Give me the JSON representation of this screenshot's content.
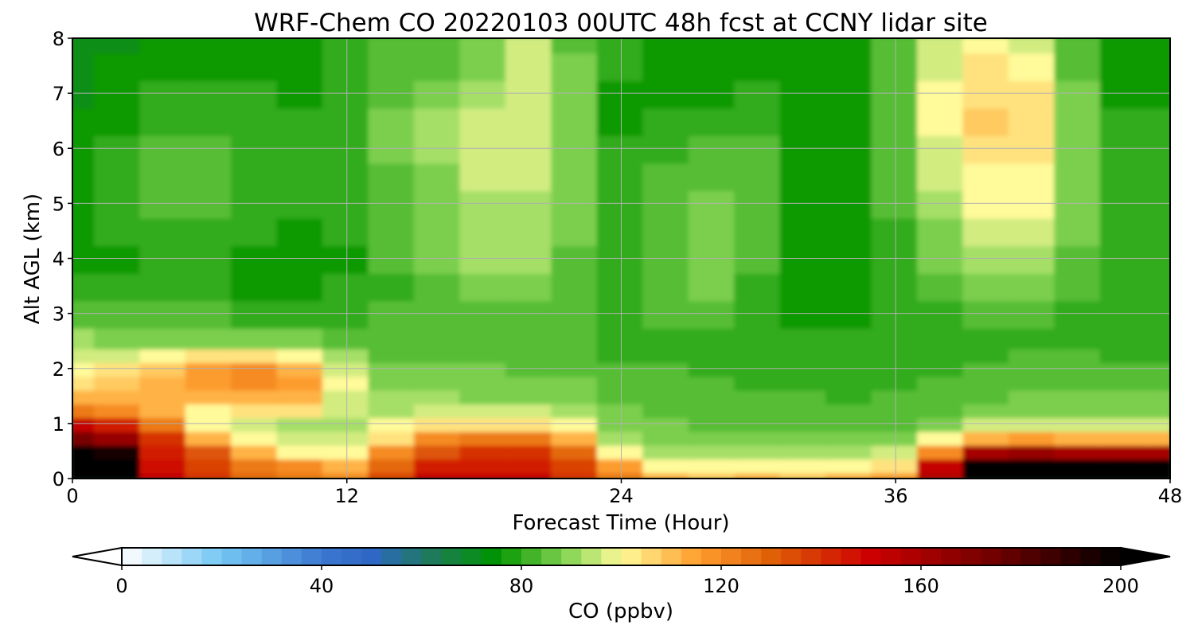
{
  "chart_data": {
    "type": "heatmap",
    "title": "WRF-Chem CO  20220103 00UTC 48h fcst at CCNY lidar site",
    "xlabel": "Forecast Time (Hour)",
    "ylabel": "Alt AGL (km)",
    "xlim": [
      0,
      48
    ],
    "ylim": [
      0,
      8
    ],
    "xticks": [
      "0",
      "12",
      "24",
      "36",
      "48"
    ],
    "yticks": [
      "0",
      "1",
      "2",
      "3",
      "4",
      "5",
      "6",
      "7",
      "8"
    ],
    "grid": true,
    "x": [
      0,
      2,
      4,
      6,
      8,
      10,
      12,
      14,
      16,
      18,
      20,
      22,
      24,
      26,
      28,
      30,
      32,
      34,
      36,
      38,
      40,
      42,
      44,
      46,
      48
    ],
    "y": [
      0,
      0.25,
      0.5,
      0.75,
      1,
      1.25,
      1.5,
      1.75,
      2,
      2.25,
      2.5,
      3,
      3.5,
      4,
      4.5,
      5,
      5.5,
      6,
      6.5,
      7,
      7.5,
      8
    ],
    "z": [
      [
        205,
        205,
        150,
        140,
        128,
        122,
        118,
        135,
        150,
        150,
        150,
        140,
        125,
        110,
        108,
        110,
        108,
        112,
        115,
        155,
        205,
        205,
        205,
        205,
        205
      ],
      [
        205,
        205,
        148,
        135,
        125,
        118,
        112,
        128,
        142,
        145,
        145,
        135,
        115,
        100,
        100,
        100,
        100,
        100,
        105,
        150,
        205,
        205,
        205,
        205,
        205
      ],
      [
        200,
        195,
        142,
        130,
        112,
        100,
        100,
        118,
        132,
        138,
        138,
        126,
        100,
        92,
        92,
        90,
        90,
        90,
        95,
        120,
        160,
        165,
        160,
        158,
        158
      ],
      [
        170,
        165,
        140,
        112,
        100,
        95,
        95,
        105,
        120,
        125,
        125,
        110,
        92,
        88,
        87,
        86,
        86,
        86,
        88,
        100,
        110,
        115,
        112,
        110,
        110
      ],
      [
        150,
        145,
        122,
        100,
        97,
        93,
        92,
        98,
        102,
        102,
        102,
        98,
        88,
        86,
        85,
        84,
        84,
        84,
        85,
        88,
        94,
        95,
        95,
        95,
        95
      ],
      [
        125,
        120,
        110,
        100,
        103,
        102,
        94,
        92,
        94,
        94,
        94,
        92,
        86,
        85,
        84,
        83,
        83,
        82,
        83,
        85,
        88,
        89,
        89,
        89,
        89
      ],
      [
        110,
        112,
        110,
        110,
        112,
        110,
        96,
        90,
        90,
        89,
        88,
        88,
        84,
        84,
        83,
        82,
        82,
        81,
        82,
        83,
        85,
        86,
        86,
        86,
        86
      ],
      [
        105,
        108,
        112,
        116,
        118,
        115,
        100,
        88,
        88,
        87,
        86,
        86,
        83,
        83,
        82,
        81,
        81,
        80,
        81,
        82,
        83,
        84,
        84,
        84,
        84
      ],
      [
        100,
        102,
        108,
        115,
        118,
        110,
        95,
        86,
        86,
        86,
        85,
        85,
        82,
        82,
        81,
        80,
        80,
        79,
        80,
        81,
        82,
        83,
        83,
        83,
        83
      ],
      [
        95,
        94,
        100,
        104,
        102,
        98,
        90,
        84,
        84,
        84,
        84,
        84,
        81,
        81,
        80,
        79,
        79,
        78,
        79,
        80,
        81,
        82,
        82,
        81,
        81
      ],
      [
        90,
        88,
        88,
        88,
        87,
        86,
        84,
        83,
        83,
        83,
        83,
        83,
        80,
        80,
        79,
        78,
        78,
        78,
        78,
        79,
        80,
        80,
        80,
        79,
        79
      ],
      [
        84,
        82,
        82,
        82,
        81,
        80,
        80,
        82,
        83,
        84,
        85,
        84,
        81,
        82,
        82,
        79,
        77,
        77,
        78,
        80,
        82,
        82,
        80,
        78,
        78
      ],
      [
        79,
        78,
        79,
        78,
        77,
        77,
        78,
        81,
        84,
        87,
        88,
        85,
        80,
        84,
        86,
        81,
        77,
        77,
        79,
        83,
        87,
        87,
        82,
        78,
        78
      ],
      [
        77,
        77,
        79,
        79,
        77,
        76,
        77,
        82,
        86,
        90,
        90,
        85,
        79,
        84,
        87,
        83,
        77,
        77,
        80,
        86,
        92,
        92,
        84,
        78,
        78
      ],
      [
        77,
        78,
        81,
        80,
        78,
        77,
        78,
        83,
        88,
        92,
        92,
        86,
        79,
        84,
        87,
        84,
        77,
        77,
        81,
        89,
        95,
        95,
        86,
        78,
        78
      ],
      [
        77,
        79,
        83,
        83,
        80,
        78,
        79,
        84,
        88,
        93,
        93,
        86,
        79,
        83,
        86,
        84,
        77,
        77,
        82,
        92,
        98,
        98,
        88,
        79,
        79
      ],
      [
        76,
        79,
        83,
        84,
        81,
        79,
        80,
        85,
        89,
        94,
        94,
        86,
        78,
        82,
        85,
        83,
        77,
        77,
        83,
        94,
        101,
        100,
        88,
        79,
        79
      ],
      [
        75,
        78,
        82,
        83,
        81,
        79,
        81,
        86,
        90,
        95,
        95,
        86,
        78,
        80,
        82,
        82,
        77,
        77,
        84,
        96,
        104,
        102,
        88,
        79,
        79
      ],
      [
        74,
        77,
        80,
        81,
        80,
        78,
        81,
        87,
        90,
        94,
        96,
        86,
        77,
        78,
        79,
        80,
        77,
        77,
        84,
        98,
        106,
        103,
        87,
        78,
        78
      ],
      [
        73,
        75,
        78,
        79,
        78,
        77,
        80,
        85,
        88,
        91,
        97,
        86,
        77,
        76,
        77,
        78,
        76,
        76,
        84,
        98,
        105,
        102,
        86,
        77,
        77
      ],
      [
        72,
        74,
        76,
        77,
        77,
        76,
        79,
        83,
        85,
        88,
        96,
        86,
        78,
        75,
        76,
        77,
        75,
        75,
        83,
        96,
        102,
        99,
        85,
        76,
        76
      ],
      [
        71,
        73,
        75,
        76,
        76,
        75,
        78,
        82,
        83,
        86,
        94,
        85,
        78,
        74,
        75,
        76,
        74,
        74,
        82,
        94,
        99,
        97,
        84,
        75,
        75
      ]
    ]
  },
  "colorbar": {
    "label": "CO  (ppbv)",
    "ticks": [
      "0",
      "40",
      "80",
      "120",
      "160",
      "200"
    ],
    "min": 0,
    "max": 200,
    "extend": "both"
  }
}
